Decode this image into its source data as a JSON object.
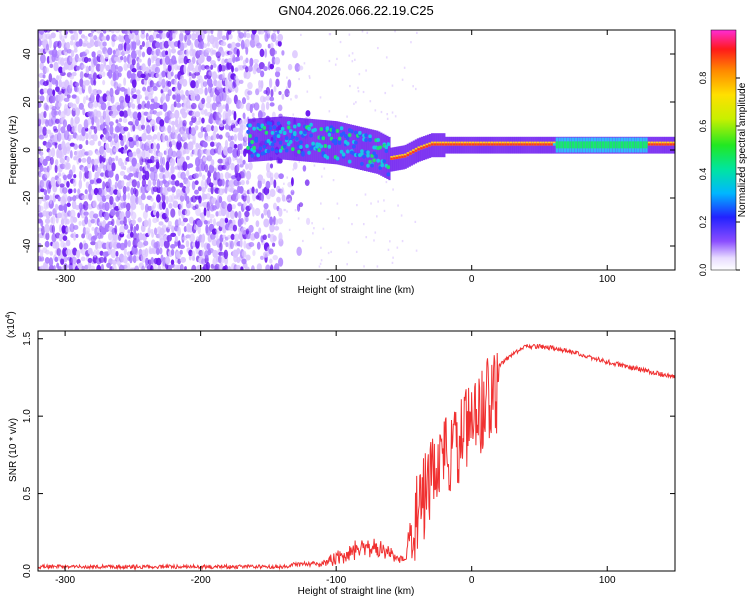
{
  "title": "GN04.2026.066.22.19.C25",
  "colors": {
    "snr_line": "#f03030",
    "axis": "#000000",
    "spec_light": "#d9c2ff",
    "spec_mid": "#a877ff",
    "spec_dark": "#6a16f0"
  },
  "chart_data": [
    {
      "type": "heatmap",
      "name": "spectrogram",
      "xlabel": "Height of straight line (km)",
      "ylabel": "Frequency (Hz)",
      "xlim": [
        -320,
        150
      ],
      "ylim": [
        -50,
        50
      ],
      "xticks": [
        -300,
        -200,
        -100,
        0,
        100
      ],
      "xtick_labels": [
        "-300",
        "-200",
        "-100",
        "0",
        "100"
      ],
      "yticks": [
        -40,
        -20,
        0,
        20,
        40
      ],
      "ytick_labels": [
        "-40",
        "-20",
        "0",
        "20",
        "40"
      ],
      "ridge": {
        "x": [
          -165,
          -140,
          -120,
          -100,
          -85,
          -70,
          -60,
          -50,
          -40,
          -30,
          -20,
          -10,
          0,
          20,
          50,
          80,
          100,
          120,
          150
        ],
        "y": [
          4,
          5,
          4,
          3,
          1,
          -1,
          -4,
          -3,
          0,
          2,
          2,
          2,
          2,
          2,
          2,
          2,
          2,
          2,
          2
        ]
      },
      "colorbar": {
        "label": "Normalized spectral amplitude",
        "range": [
          0.0,
          1.0
        ],
        "ticks": [
          0.0,
          0.2,
          0.4,
          0.6,
          0.8
        ],
        "tick_labels": [
          "0.0",
          "0.2",
          "0.4",
          "0.6",
          "0.8"
        ]
      }
    },
    {
      "type": "line",
      "name": "snr",
      "xlabel": "Height of straight line (km)",
      "ylabel": "SNR (10 * v/v)",
      "multiplier": "(x10",
      "multiplier_exp": "4",
      "multiplier_close": ")",
      "xlim": [
        -320,
        150
      ],
      "ylim": [
        0.0,
        1.55
      ],
      "xticks": [
        -300,
        -200,
        -100,
        0,
        100
      ],
      "xtick_labels": [
        "-300",
        "-200",
        "-100",
        "0",
        "100"
      ],
      "yticks": [
        0.0,
        0.5,
        1.0,
        1.5
      ],
      "ytick_labels": [
        "0.0",
        "0.5",
        "1.0",
        "1.5"
      ],
      "envelope": {
        "x": [
          -320,
          -200,
          -150,
          -140,
          -130,
          -120,
          -110,
          -100,
          -90,
          -80,
          -70,
          -60,
          -50,
          -40,
          -30,
          -20,
          -10,
          0,
          10,
          20,
          30,
          40,
          50,
          60,
          80,
          100,
          120,
          150
        ],
        "y": [
          0.01,
          0.01,
          0.02,
          0.03,
          0.05,
          0.05,
          0.06,
          0.1,
          0.14,
          0.2,
          0.18,
          0.12,
          0.1,
          0.5,
          0.72,
          0.85,
          0.95,
          1.1,
          1.22,
          1.32,
          1.4,
          1.45,
          1.45,
          1.44,
          1.4,
          1.35,
          1.31,
          1.25
        ]
      }
    }
  ]
}
